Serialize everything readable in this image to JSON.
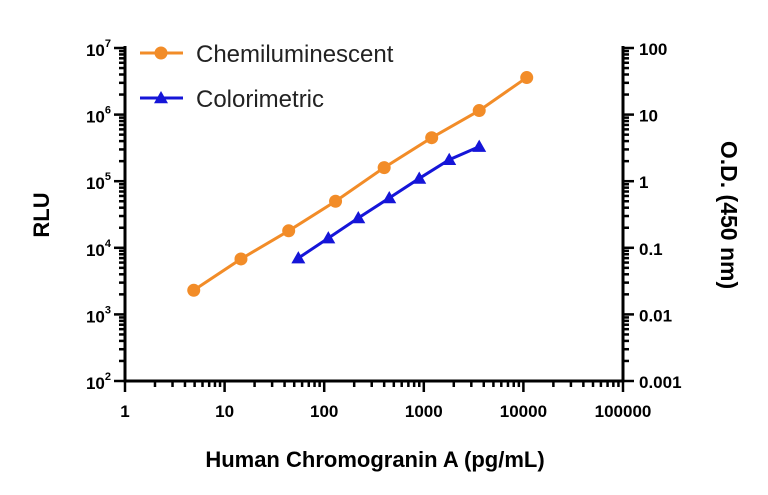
{
  "chart_data": {
    "type": "scatter",
    "x_scale": "log",
    "y_left_scale": "log",
    "y_right_scale": "log",
    "xlabel": "Human Chromogranin A (pg/mL)",
    "ylabel_left": "RLU",
    "ylabel_right": "O.D. (450 nm)",
    "xlim": [
      1,
      100000
    ],
    "ylim_left": [
      100,
      10000000
    ],
    "ylim_right": [
      0.001,
      100
    ],
    "x_ticks": [
      "1",
      "10",
      "100",
      "1000",
      "10000",
      "100000"
    ],
    "y_left_ticks": [
      {
        "base": "10",
        "exp": "2"
      },
      {
        "base": "10",
        "exp": "3"
      },
      {
        "base": "10",
        "exp": "4"
      },
      {
        "base": "10",
        "exp": "5"
      },
      {
        "base": "10",
        "exp": "6"
      },
      {
        "base": "10",
        "exp": "7"
      }
    ],
    "y_right_ticks": [
      "0.001",
      "0.01",
      "0.1",
      "1",
      "10",
      "100"
    ],
    "legend_position": "top-left",
    "grid": false,
    "series": [
      {
        "name": "Chemiluminescent",
        "axis": "left",
        "color": "#F28C28",
        "marker": "circle",
        "x": [
          4.9,
          14.6,
          44,
          130,
          400,
          1200,
          3600,
          10800
        ],
        "y": [
          2300,
          6800,
          18000,
          50000,
          160000,
          450000,
          1150000,
          3600000
        ]
      },
      {
        "name": "Colorimetric",
        "axis": "right",
        "color": "#1515D8",
        "marker": "triangle",
        "x": [
          55,
          110,
          220,
          450,
          900,
          1800,
          3600
        ],
        "y": [
          0.07,
          0.14,
          0.28,
          0.56,
          1.1,
          2.1,
          3.3
        ]
      }
    ]
  }
}
